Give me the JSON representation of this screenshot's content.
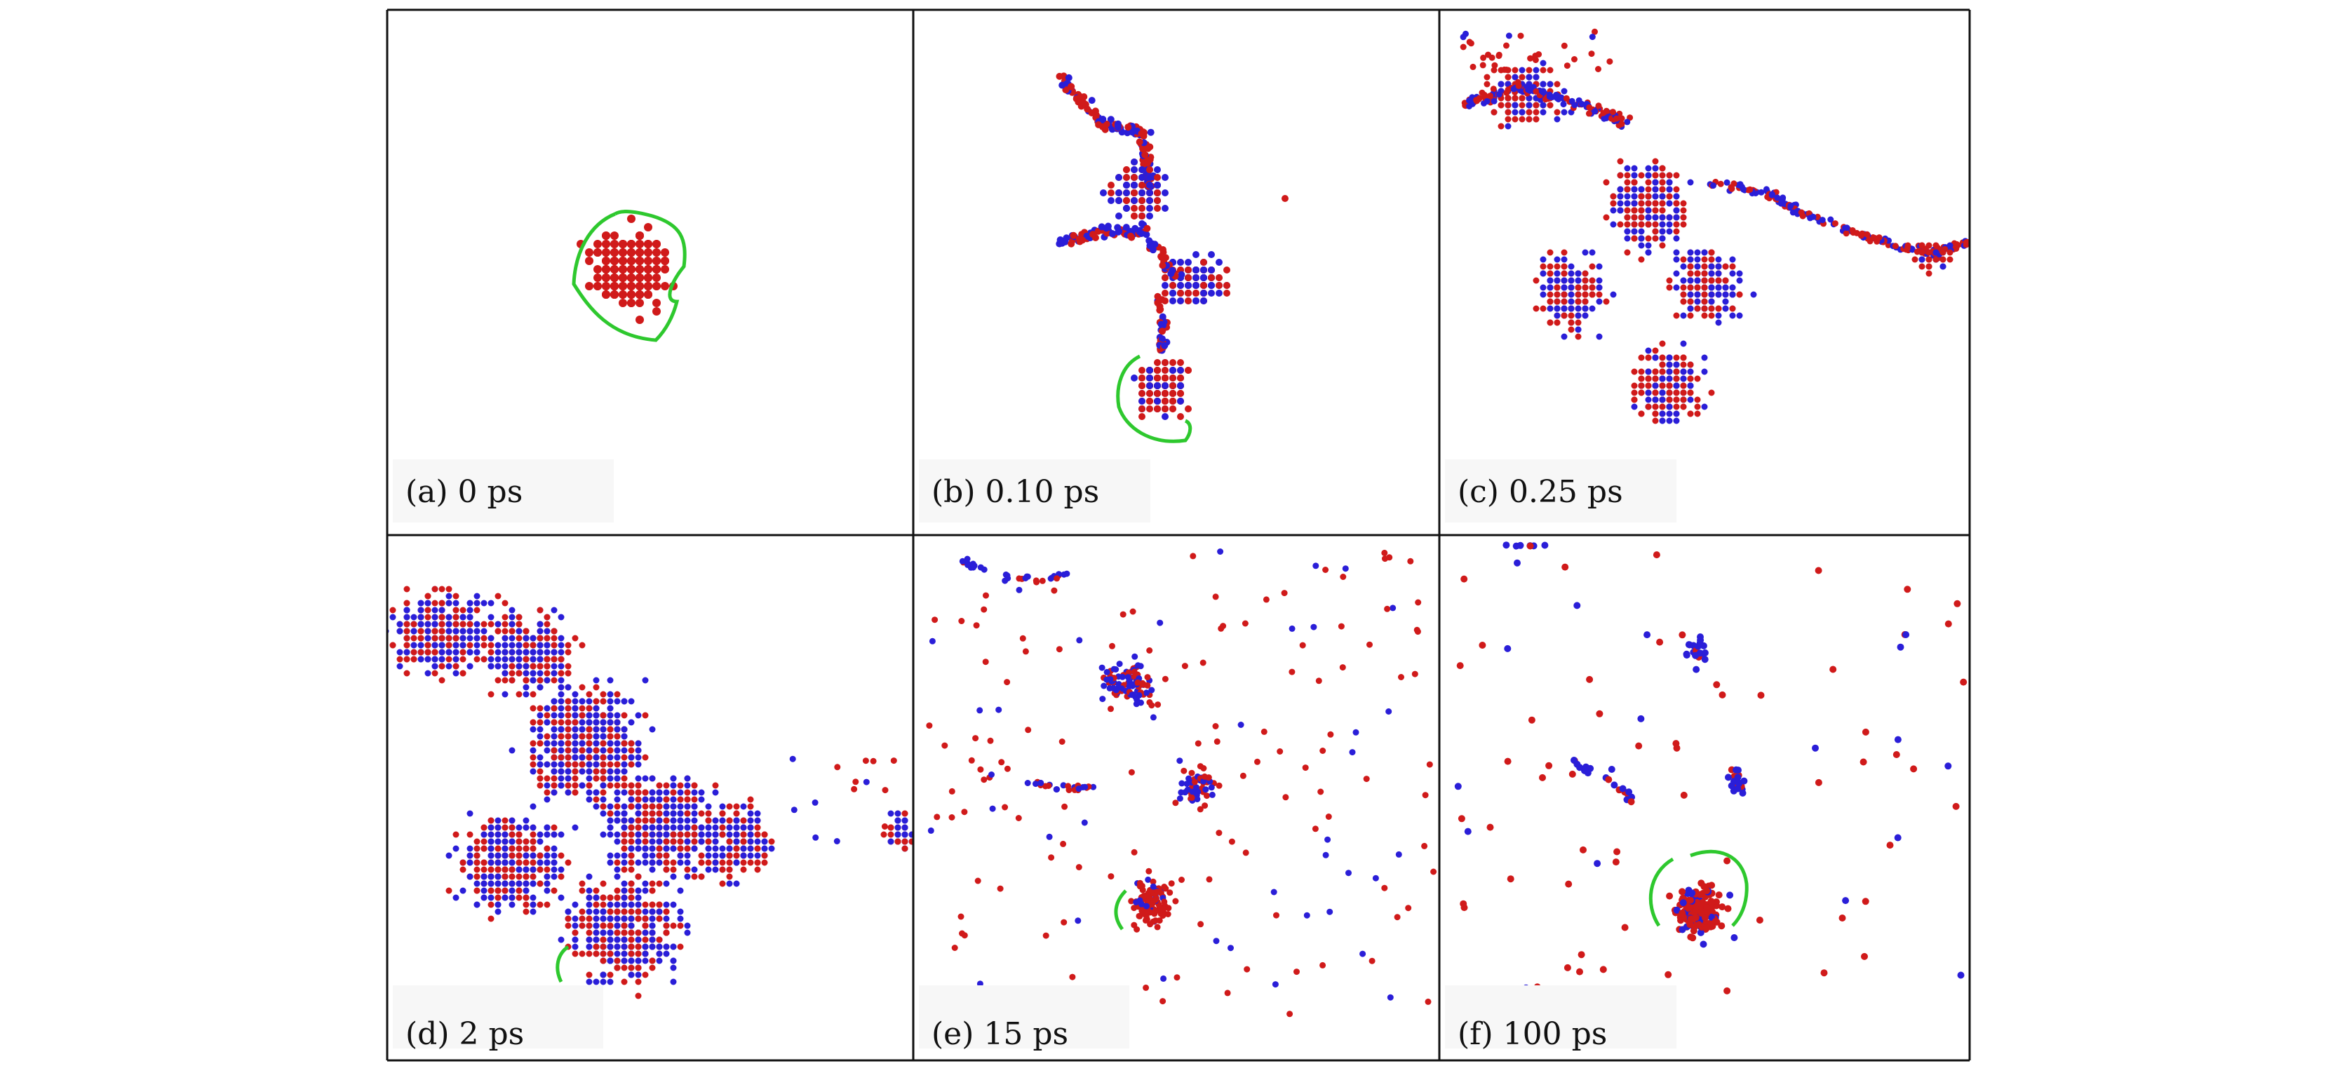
{
  "figure": {
    "panels": [
      {
        "id": "a",
        "label": "(a) 0 ps",
        "time_ps": 0,
        "cascade_outline": true
      },
      {
        "id": "b",
        "label": "(b) 0.10 ps",
        "time_ps": 0.1,
        "cascade_outline": true
      },
      {
        "id": "c",
        "label": "(c) 0.25 ps",
        "time_ps": 0.25,
        "cascade_outline": false
      },
      {
        "id": "d",
        "label": "(d) 2 ps",
        "time_ps": 2,
        "cascade_outline": true
      },
      {
        "id": "e",
        "label": "(e) 15 ps",
        "time_ps": 15,
        "cascade_outline": true
      },
      {
        "id": "f",
        "label": "(f) 100 ps",
        "time_ps": 100,
        "cascade_outline": true
      }
    ],
    "colors": {
      "red_atoms": "#d01a1a",
      "blue_atoms": "#2a1ed8",
      "outline": "#2ec82e",
      "frame": "#111111"
    }
  }
}
